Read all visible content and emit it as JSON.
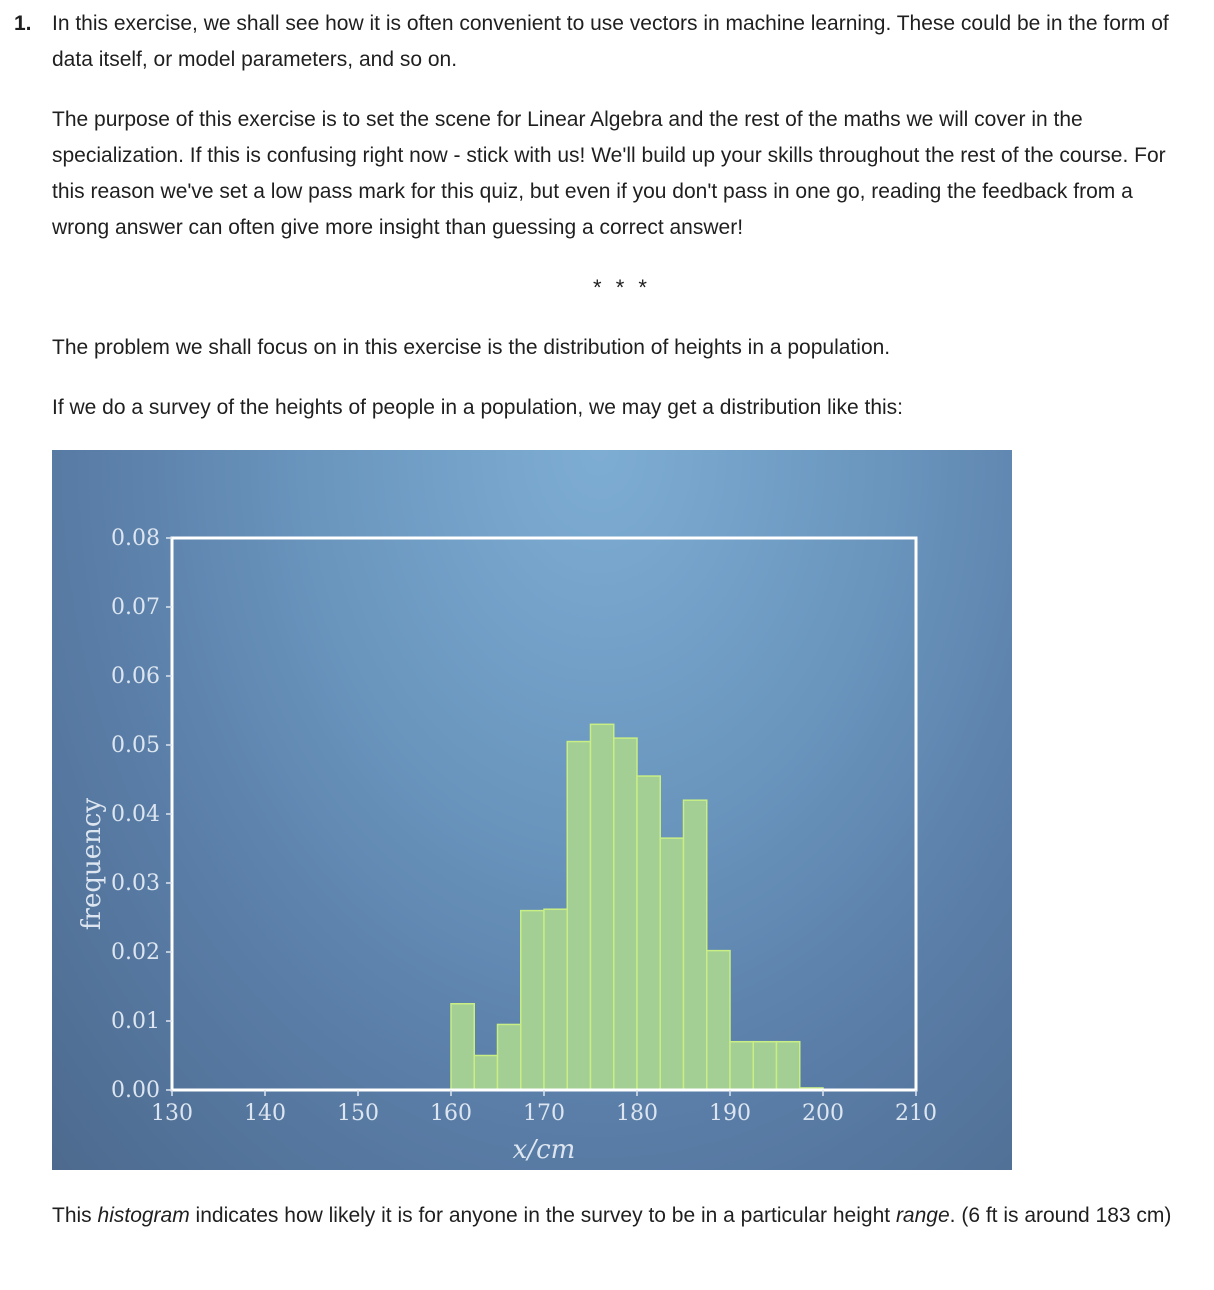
{
  "question": {
    "number": "1.",
    "intro": "In this exercise, we shall see how it is often convenient to use vectors in machine learning. These could be in the form of data itself, or model parameters, and so on.",
    "purpose": "The purpose of this exercise is to set the scene for Linear Algebra and the rest of the maths we will cover in the specialization. If this is confusing right now - stick with us! We'll build up your skills throughout the rest of the course. For this reason we've set a low pass mark for this quiz, but even if you don't pass in one go, reading the feedback from a wrong answer can often give more insight than guessing a correct answer!",
    "separator": "* * *",
    "problem": "The problem we shall focus on in this exercise is the distribution of heights in a population.",
    "survey": "If we do a survey of the heights of people in a population, we may get a distribution like this:",
    "caption_1": "This ",
    "caption_em_1": "histogram",
    "caption_2": " indicates how likely it is for anyone in the survey to be in a particular height ",
    "caption_em_2": "range",
    "caption_3": ". (6 ft is around 183 cm)"
  },
  "chart_data": {
    "type": "bar",
    "xlabel": "x/cm",
    "ylabel": "frequency",
    "xlim": [
      130,
      210
    ],
    "ylim": [
      0,
      0.08
    ],
    "xticks": [
      "130",
      "140",
      "150",
      "160",
      "170",
      "180",
      "190",
      "200",
      "210"
    ],
    "yticks": [
      "0.00",
      "0.01",
      "0.02",
      "0.03",
      "0.04",
      "0.05",
      "0.06",
      "0.07",
      "0.08"
    ],
    "bin_width": 2.5,
    "bin_starts": [
      160,
      162.5,
      165,
      167.5,
      170,
      172.5,
      175,
      177.5,
      180,
      182.5,
      185,
      187.5,
      190,
      192.5,
      195,
      197.5
    ],
    "values": [
      0.0125,
      0.005,
      0.0095,
      0.026,
      0.0262,
      0.0505,
      0.053,
      0.051,
      0.0455,
      0.0365,
      0.042,
      0.0202,
      0.007,
      0.007,
      0.007,
      0.0003
    ],
    "bar_fill": "#a3cf94",
    "bar_stroke": "#c8ee84",
    "frame_color": "#ffffff",
    "tick_color": "#dde6f0",
    "grid": false
  }
}
